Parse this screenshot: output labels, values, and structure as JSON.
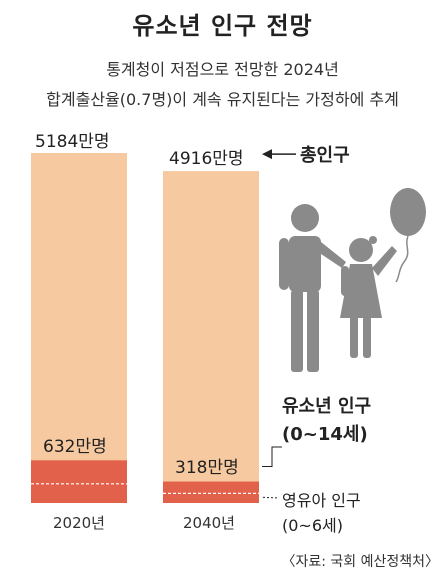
{
  "title": "유소년 인구 전망",
  "subtitle_line1": "통계청이 저점으로 전망한 2024년",
  "subtitle_line2": "합계출산율(0.7명)이 계속 유지된다는 가정하에 추계",
  "source": "〈자료: 국회 예산정책처〉",
  "colors": {
    "total": "#f7c9a0",
    "youth": "#e2614a",
    "infant_line": "#ffffff",
    "figure": "#8a8a8a"
  },
  "chart_data": {
    "type": "bar",
    "categories": [
      "2020년",
      "2040년"
    ],
    "series": [
      {
        "name": "총인구",
        "values": [
          5184,
          4916
        ],
        "labels": [
          "5184만명",
          "4916만명"
        ]
      },
      {
        "name": "유소년 인구 (0~14세)",
        "values": [
          632,
          318
        ],
        "labels": [
          "632만명",
          "318만명"
        ]
      }
    ],
    "unit": "만명",
    "annotations": {
      "total": "총인구",
      "youth_title": "유소년 인구",
      "youth_range": "(0~14세)",
      "infant_title": "영유아 인구",
      "infant_range": "(0~6세)"
    }
  }
}
